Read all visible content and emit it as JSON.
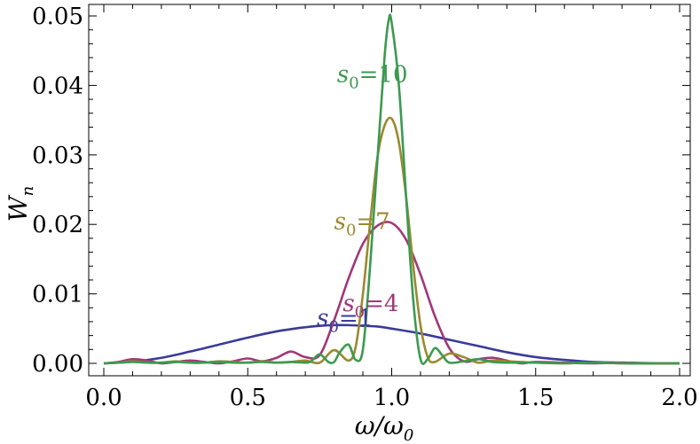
{
  "chart_data": {
    "type": "line",
    "title": "",
    "xlabel": {
      "main": "ω/ω",
      "sub": "0"
    },
    "ylabel": {
      "main": "W",
      "sub": "n"
    },
    "xlim": [
      0.0,
      2.0
    ],
    "ylim": [
      0.0,
      0.05
    ],
    "xticks": [
      0.0,
      0.5,
      1.0,
      1.5,
      2.0
    ],
    "xtick_labels": [
      "0.0",
      "0.5",
      "1.0",
      "1.5",
      "2.0"
    ],
    "yticks": [
      0.0,
      0.01,
      0.02,
      0.03,
      0.04,
      0.05
    ],
    "ytick_labels": [
      "0.00",
      "0.01",
      "0.02",
      "0.03",
      "0.04",
      "0.05"
    ],
    "grid": false,
    "legend": "inline labels",
    "series": [
      {
        "name": "s0=1",
        "label_var": "s",
        "label_sub": "0",
        "label_val": "=1",
        "color": "#3a3a9a",
        "x": [
          0.0,
          0.1,
          0.2,
          0.3,
          0.4,
          0.5,
          0.6,
          0.7,
          0.75,
          0.8,
          0.85,
          0.9,
          0.95,
          1.0,
          1.1,
          1.2,
          1.3,
          1.4,
          1.5,
          1.6,
          1.7,
          1.8,
          1.9,
          2.0
        ],
        "y": [
          0.0,
          0.00025,
          0.0008,
          0.0017,
          0.0027,
          0.0037,
          0.0046,
          0.0052,
          0.0054,
          0.0055,
          0.0055,
          0.0054,
          0.0053,
          0.005,
          0.0043,
          0.0034,
          0.0025,
          0.0016,
          0.0009,
          0.0005,
          0.0002,
          0.0001,
          2e-05,
          0.0
        ]
      },
      {
        "name": "s0=4",
        "label_var": "s",
        "label_sub": "0",
        "label_val": "=4",
        "color": "#a0387a",
        "x": [
          0.0,
          0.05,
          0.1,
          0.15,
          0.2,
          0.25,
          0.3,
          0.35,
          0.4,
          0.45,
          0.5,
          0.55,
          0.6,
          0.65,
          0.7,
          0.75,
          0.8,
          0.85,
          0.9,
          0.95,
          1.0,
          1.05,
          1.1,
          1.15,
          1.2,
          1.25,
          1.3,
          1.35,
          1.4,
          1.45,
          1.5,
          1.6,
          1.7,
          1.8,
          1.9,
          2.0
        ],
        "y": [
          0.0,
          0.0002,
          0.0006,
          0.0004,
          0.0,
          0.0002,
          0.0004,
          0.0002,
          0.0,
          0.0003,
          0.0007,
          0.0003,
          0.0008,
          0.0017,
          0.0009,
          0.0012,
          0.0062,
          0.0122,
          0.0172,
          0.0198,
          0.0202,
          0.0178,
          0.0128,
          0.0068,
          0.0022,
          0.0003,
          0.0006,
          0.0008,
          0.0004,
          0.0,
          0.0002,
          0.0001,
          0.0,
          0.0001,
          0.0,
          0.0
        ]
      },
      {
        "name": "s0=7",
        "label_var": "s",
        "label_sub": "0",
        "label_val": "=7",
        "color": "#9a8a30",
        "x": [
          0.0,
          0.05,
          0.1,
          0.15,
          0.2,
          0.25,
          0.3,
          0.35,
          0.4,
          0.45,
          0.5,
          0.55,
          0.6,
          0.65,
          0.7,
          0.75,
          0.8,
          0.85,
          0.875,
          0.9,
          0.925,
          0.95,
          0.975,
          1.0,
          1.025,
          1.05,
          1.075,
          1.1,
          1.125,
          1.15,
          1.2,
          1.25,
          1.3,
          1.35,
          1.4,
          1.5,
          1.6,
          1.7,
          1.8,
          1.9,
          2.0
        ],
        "y": [
          0.0,
          0.0001,
          0.0003,
          0.0001,
          0.0001,
          0.0003,
          0.0001,
          0.0001,
          0.0003,
          0.0002,
          0.0001,
          0.0003,
          0.0001,
          0.0002,
          0.0004,
          0.0001,
          0.0019,
          0.0004,
          0.0024,
          0.01,
          0.0202,
          0.0295,
          0.0342,
          0.0352,
          0.0318,
          0.024,
          0.014,
          0.0055,
          0.0009,
          0.0002,
          0.0014,
          0.0009,
          0.0001,
          0.0004,
          0.0003,
          0.0001,
          0.0,
          0.0001,
          0.0,
          0.0,
          0.0
        ]
      },
      {
        "name": "s0=10",
        "label_var": "s",
        "label_sub": "0",
        "label_val": "=10",
        "color": "#3c9a50",
        "x": [
          0.0,
          0.05,
          0.1,
          0.15,
          0.2,
          0.25,
          0.3,
          0.35,
          0.4,
          0.45,
          0.5,
          0.55,
          0.6,
          0.65,
          0.7,
          0.72,
          0.75,
          0.78,
          0.8,
          0.82,
          0.85,
          0.875,
          0.9,
          0.925,
          0.95,
          0.975,
          0.99,
          1.0,
          1.025,
          1.05,
          1.075,
          1.1,
          1.125,
          1.15,
          1.175,
          1.2,
          1.25,
          1.3,
          1.35,
          1.4,
          1.5,
          1.6,
          1.7,
          1.8,
          1.9,
          2.0
        ],
        "y": [
          0.0,
          0.0001,
          0.0002,
          0.0001,
          0.0001,
          0.0002,
          0.0001,
          0.0001,
          0.0002,
          0.0001,
          0.0001,
          0.0002,
          0.0001,
          0.0002,
          0.0001,
          0.0003,
          0.0013,
          0.0002,
          0.0002,
          0.0016,
          0.0027,
          0.0005,
          0.002,
          0.014,
          0.029,
          0.044,
          0.0495,
          0.049,
          0.04,
          0.024,
          0.009,
          0.0006,
          0.0006,
          0.0022,
          0.0012,
          0.0001,
          0.0003,
          0.0006,
          0.0002,
          0.0001,
          0.0001,
          0.0,
          0.0001,
          0.0,
          0.0,
          0.0
        ]
      }
    ],
    "annotations": [
      {
        "series": 0,
        "x": 0.74,
        "y": 0.0054
      },
      {
        "series": 1,
        "x": 0.83,
        "y": 0.0075
      },
      {
        "series": 2,
        "x": 0.8,
        "y": 0.0193
      },
      {
        "series": 3,
        "x": 0.81,
        "y": 0.0405
      }
    ]
  }
}
